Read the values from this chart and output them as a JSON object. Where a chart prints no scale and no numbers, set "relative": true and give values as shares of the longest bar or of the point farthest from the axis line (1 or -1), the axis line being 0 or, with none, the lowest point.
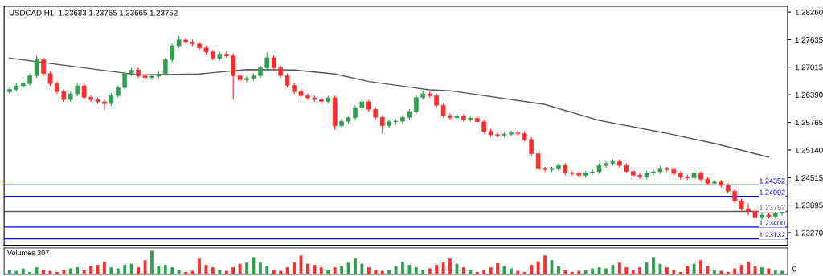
{
  "chart_data": [
    {
      "type": "candlestick",
      "title": "USDCAD,H1  1.23683 1.23765 1.23665 1.23752",
      "categories": [
        null,
        null,
        null,
        null,
        null,
        null,
        null,
        null,
        null,
        null,
        null,
        null,
        null,
        null,
        null,
        null,
        null,
        null,
        null,
        null,
        null,
        null,
        null,
        null,
        null,
        null,
        null,
        null,
        null,
        null,
        null,
        null,
        null,
        null,
        null,
        null,
        null,
        null,
        null,
        null,
        null,
        null,
        null,
        null,
        null,
        null,
        null,
        null,
        null,
        null,
        null,
        null,
        null,
        null,
        null,
        null,
        null,
        null,
        null,
        null,
        null,
        null,
        null,
        null,
        null,
        null,
        null,
        null,
        null,
        null,
        null,
        null,
        null,
        null,
        null,
        null,
        null,
        null,
        null,
        null,
        null,
        null,
        null,
        null,
        null,
        null,
        null,
        null,
        null,
        null,
        null,
        null,
        null,
        null,
        null,
        null,
        null,
        null,
        null,
        null,
        null,
        null,
        null,
        null,
        null,
        null,
        null,
        null,
        null,
        null,
        null,
        null,
        null,
        null,
        null
      ],
      "ohlc": [
        [
          1.2645,
          1.2656,
          1.264,
          1.2651
        ],
        [
          1.2651,
          1.2664,
          1.2646,
          1.2659
        ],
        [
          1.2659,
          1.2669,
          1.2654,
          1.2664
        ],
        [
          1.2664,
          1.2687,
          1.2659,
          1.2682
        ],
        [
          1.2682,
          1.2727,
          1.2677,
          1.2718
        ],
        [
          1.2718,
          1.2723,
          1.2682,
          1.2687
        ],
        [
          1.2687,
          1.2692,
          1.2659,
          1.2664
        ],
        [
          1.2664,
          1.2669,
          1.2641,
          1.2646
        ],
        [
          1.2646,
          1.2651,
          1.2623,
          1.2628
        ],
        [
          1.2628,
          1.2646,
          1.2623,
          1.2641
        ],
        [
          1.2641,
          1.2664,
          1.2636,
          1.2659
        ],
        [
          1.2659,
          1.2664,
          1.2628,
          1.2633
        ],
        [
          1.2633,
          1.2638,
          1.2623,
          1.2628
        ],
        [
          1.2628,
          1.2633,
          1.2618,
          1.2623
        ],
        [
          1.2623,
          1.2628,
          1.2605,
          1.2619
        ],
        [
          1.2619,
          1.2642,
          1.2614,
          1.2637
        ],
        [
          1.2637,
          1.266,
          1.2632,
          1.2655
        ],
        [
          1.2655,
          1.2692,
          1.265,
          1.2687
        ],
        [
          1.2687,
          1.27,
          1.2682,
          1.2695
        ],
        [
          1.2695,
          1.27,
          1.2677,
          1.2682
        ],
        [
          1.2682,
          1.2687,
          1.2673,
          1.2678
        ],
        [
          1.2678,
          1.2686,
          1.2673,
          1.2681
        ],
        [
          1.2681,
          1.2691,
          1.2676,
          1.2686
        ],
        [
          1.2686,
          1.2723,
          1.2681,
          1.2718
        ],
        [
          1.2718,
          1.2755,
          1.2713,
          1.275
        ],
        [
          1.275,
          1.2772,
          1.2745,
          1.2763
        ],
        [
          1.2763,
          1.2768,
          1.2754,
          1.2759
        ],
        [
          1.2759,
          1.2764,
          1.2749,
          1.2754
        ],
        [
          1.2754,
          1.2759,
          1.274,
          1.2745
        ],
        [
          1.2745,
          1.275,
          1.2731,
          1.2736
        ],
        [
          1.2736,
          1.2741,
          1.2717,
          1.2722
        ],
        [
          1.2722,
          1.2736,
          1.2717,
          1.2731
        ],
        [
          1.2731,
          1.2736,
          1.2722,
          1.2727
        ],
        [
          1.2727,
          1.2732,
          1.2628,
          1.2682
        ],
        [
          1.2682,
          1.2687,
          1.2668,
          1.2673
        ],
        [
          1.2673,
          1.2681,
          1.2668,
          1.2676
        ],
        [
          1.2676,
          1.2687,
          1.2671,
          1.2682
        ],
        [
          1.2682,
          1.2705,
          1.2677,
          1.27
        ],
        [
          1.27,
          1.2735,
          1.2695,
          1.2723
        ],
        [
          1.2723,
          1.2728,
          1.2695,
          1.27
        ],
        [
          1.27,
          1.2705,
          1.2677,
          1.2682
        ],
        [
          1.2682,
          1.2687,
          1.2655,
          1.266
        ],
        [
          1.266,
          1.2665,
          1.2641,
          1.2646
        ],
        [
          1.2646,
          1.2651,
          1.2632,
          1.2637
        ],
        [
          1.2637,
          1.2642,
          1.2627,
          1.2632
        ],
        [
          1.2632,
          1.2637,
          1.2623,
          1.2628
        ],
        [
          1.2628,
          1.2633,
          1.2619,
          1.2624
        ],
        [
          1.2624,
          1.2637,
          1.2619,
          1.2632
        ],
        [
          1.2632,
          1.2637,
          1.256,
          1.2569
        ],
        [
          1.2569,
          1.2584,
          1.2564,
          1.2579
        ],
        [
          1.2579,
          1.2592,
          1.2574,
          1.2587
        ],
        [
          1.2587,
          1.2615,
          1.2582,
          1.261
        ],
        [
          1.261,
          1.2628,
          1.2605,
          1.2623
        ],
        [
          1.2623,
          1.2628,
          1.2601,
          1.2606
        ],
        [
          1.2606,
          1.2611,
          1.2583,
          1.2588
        ],
        [
          1.2588,
          1.2593,
          1.2551,
          1.2569
        ],
        [
          1.2569,
          1.2583,
          1.2564,
          1.2578
        ],
        [
          1.2578,
          1.2584,
          1.2573,
          1.2579
        ],
        [
          1.2579,
          1.2593,
          1.2574,
          1.2588
        ],
        [
          1.2588,
          1.2606,
          1.2583,
          1.2601
        ],
        [
          1.2601,
          1.2638,
          1.2596,
          1.2633
        ],
        [
          1.2633,
          1.2648,
          1.2628,
          1.2641
        ],
        [
          1.2641,
          1.2646,
          1.2632,
          1.2637
        ],
        [
          1.2637,
          1.2642,
          1.261,
          1.2615
        ],
        [
          1.2615,
          1.262,
          1.2587,
          1.2592
        ],
        [
          1.2592,
          1.2597,
          1.2582,
          1.2587
        ],
        [
          1.2587,
          1.2595,
          1.2582,
          1.259
        ],
        [
          1.259,
          1.2595,
          1.2578,
          1.2583
        ],
        [
          1.2583,
          1.2591,
          1.2578,
          1.2586
        ],
        [
          1.2586,
          1.2591,
          1.2573,
          1.2578
        ],
        [
          1.2578,
          1.2583,
          1.2551,
          1.2556
        ],
        [
          1.2556,
          1.2561,
          1.2544,
          1.2549
        ],
        [
          1.2549,
          1.2554,
          1.2542,
          1.2547
        ],
        [
          1.2547,
          1.2555,
          1.2542,
          1.255
        ],
        [
          1.255,
          1.2558,
          1.2545,
          1.2553
        ],
        [
          1.2553,
          1.2558,
          1.2546,
          1.2551
        ],
        [
          1.2551,
          1.2556,
          1.2533,
          1.2538
        ],
        [
          1.2538,
          1.2543,
          1.2501,
          1.2506
        ],
        [
          1.2506,
          1.2511,
          1.2466,
          1.2471
        ],
        [
          1.2471,
          1.2476,
          1.2465,
          1.247
        ],
        [
          1.247,
          1.2476,
          1.2465,
          1.2471
        ],
        [
          1.2471,
          1.2484,
          1.2466,
          1.2479
        ],
        [
          1.2479,
          1.2484,
          1.2457,
          1.2462
        ],
        [
          1.2462,
          1.2467,
          1.2456,
          1.2461
        ],
        [
          1.2461,
          1.2466,
          1.2452,
          1.2457
        ],
        [
          1.2457,
          1.2467,
          1.2452,
          1.2462
        ],
        [
          1.2462,
          1.247,
          1.2457,
          1.2465
        ],
        [
          1.2465,
          1.2484,
          1.246,
          1.2479
        ],
        [
          1.2479,
          1.2489,
          1.2474,
          1.2484
        ],
        [
          1.2484,
          1.2493,
          1.2479,
          1.2488
        ],
        [
          1.2488,
          1.2493,
          1.2474,
          1.2479
        ],
        [
          1.2479,
          1.2484,
          1.2461,
          1.2466
        ],
        [
          1.2466,
          1.2471,
          1.2452,
          1.2457
        ],
        [
          1.2457,
          1.2462,
          1.2448,
          1.2453
        ],
        [
          1.2453,
          1.2467,
          1.2448,
          1.2462
        ],
        [
          1.2462,
          1.247,
          1.2457,
          1.2465
        ],
        [
          1.2465,
          1.2478,
          1.246,
          1.2471
        ],
        [
          1.2471,
          1.2476,
          1.2465,
          1.247
        ],
        [
          1.247,
          1.2475,
          1.2456,
          1.2461
        ],
        [
          1.2461,
          1.2466,
          1.2448,
          1.2453
        ],
        [
          1.2453,
          1.2458,
          1.2446,
          1.2451
        ],
        [
          1.2451,
          1.2471,
          1.2446,
          1.2462
        ],
        [
          1.2462,
          1.2467,
          1.2443,
          1.2448
        ],
        [
          1.2448,
          1.2453,
          1.2434,
          1.2439
        ],
        [
          1.2439,
          1.2447,
          1.2434,
          1.2442
        ],
        [
          1.2442,
          1.2447,
          1.2429,
          1.2434
        ],
        [
          1.2434,
          1.2439,
          1.2416,
          1.2421
        ],
        [
          1.2421,
          1.2426,
          1.2394,
          1.2399
        ],
        [
          1.2399,
          1.2404,
          1.2376,
          1.2381
        ],
        [
          1.2381,
          1.2393,
          1.2366,
          1.2376
        ],
        [
          1.2376,
          1.2381,
          1.2356,
          1.2361
        ],
        [
          1.2361,
          1.2372,
          1.2356,
          1.2367
        ],
        [
          1.2367,
          1.2372,
          1.2359,
          1.2364
        ],
        [
          1.2364,
          1.2376,
          1.2359,
          1.2371
        ],
        [
          1.2371,
          1.2377,
          1.2366,
          1.2375
        ]
      ],
      "colors": [
        "#2e9e4f",
        "#2e9e4f",
        "#2e9e4f",
        "#2e9e4f",
        "#2e9e4f",
        "#ff2a2a",
        "#ff2a2a",
        "#ff2a2a",
        "#ff2a2a",
        "#2e9e4f",
        "#2e9e4f",
        "#ff2a2a",
        "#ff2a2a",
        "#ff2a2a",
        "#ff2a2a",
        "#2e9e4f",
        "#2e9e4f",
        "#2e9e4f",
        "#2e9e4f",
        "#ff2a2a",
        "#ff2a2a",
        "#2e9e4f",
        "#2e9e4f",
        "#2e9e4f",
        "#2e9e4f",
        "#2e9e4f",
        "#ff2a2a",
        "#ff2a2a",
        "#ff2a2a",
        "#ff2a2a",
        "#ff2a2a",
        "#2e9e4f",
        "#ff2a2a",
        "#ff2a2a",
        "#ff2a2a",
        "#2e9e4f",
        "#2e9e4f",
        "#2e9e4f",
        "#2e9e4f",
        "#ff2a2a",
        "#ff2a2a",
        "#ff2a2a",
        "#ff2a2a",
        "#ff2a2a",
        "#ff2a2a",
        "#ff2a2a",
        "#ff2a2a",
        "#2e9e4f",
        "#ff2a2a",
        "#2e9e4f",
        "#2e9e4f",
        "#2e9e4f",
        "#2e9e4f",
        "#ff2a2a",
        "#ff2a2a",
        "#ff2a2a",
        "#2e9e4f",
        "#2e9e4f",
        "#2e9e4f",
        "#2e9e4f",
        "#2e9e4f",
        "#2e9e4f",
        "#ff2a2a",
        "#ff2a2a",
        "#ff2a2a",
        "#ff2a2a",
        "#2e9e4f",
        "#ff2a2a",
        "#2e9e4f",
        "#ff2a2a",
        "#ff2a2a",
        "#ff2a2a",
        "#ff2a2a",
        "#2e9e4f",
        "#2e9e4f",
        "#ff2a2a",
        "#ff2a2a",
        "#ff2a2a",
        "#ff2a2a",
        "#ff2a2a",
        "#2e9e4f",
        "#2e9e4f",
        "#ff2a2a",
        "#ff2a2a",
        "#ff2a2a",
        "#2e9e4f",
        "#2e9e4f",
        "#2e9e4f",
        "#2e9e4f",
        "#2e9e4f",
        "#ff2a2a",
        "#ff2a2a",
        "#ff2a2a",
        "#ff2a2a",
        "#2e9e4f",
        "#2e9e4f",
        "#2e9e4f",
        "#ff2a2a",
        "#ff2a2a",
        "#ff2a2a",
        "#ff2a2a",
        "#2e9e4f",
        "#ff2a2a",
        "#ff2a2a",
        "#2e9e4f",
        "#ff2a2a",
        "#ff2a2a",
        "#ff2a2a",
        "#ff2a2a",
        "#ff2a2a",
        "#ff2a2a",
        "#2e9e4f",
        "#ff2a2a",
        "#2e9e4f",
        "#2e9e4f"
      ],
      "series": [
        {
          "type": "line",
          "color": "#555555",
          "values": [
            1.2722,
            null,
            null,
            null,
            null,
            null,
            null,
            null,
            null,
            null,
            null,
            null,
            null,
            null,
            null,
            null,
            null,
            null,
            null,
            1.2684,
            null,
            null,
            null,
            null,
            null,
            null,
            null,
            null,
            1.2686,
            null,
            null,
            null,
            null,
            null,
            null,
            1.2696,
            null,
            null,
            null,
            null,
            null,
            null,
            1.2695,
            null,
            null,
            null,
            null,
            null,
            1.2686,
            null,
            null,
            null,
            null,
            1.2669,
            null,
            null,
            null,
            null,
            null,
            null,
            null,
            null,
            1.265,
            null,
            null,
            1.2648,
            null,
            null,
            null,
            null,
            null,
            null,
            null,
            null,
            null,
            null,
            null,
            null,
            null,
            1.2617,
            null,
            null,
            null,
            null,
            null,
            null,
            null,
            1.2581,
            null,
            null,
            null,
            null,
            null,
            null,
            null,
            null,
            null,
            1.2552,
            null,
            null,
            null,
            null,
            null,
            null,
            1.2529,
            null,
            null,
            null,
            null,
            null,
            null,
            null,
            1.2498,
            null,
            null
          ]
        }
      ],
      "ylim": [
        1.2299,
        1.2839
      ],
      "yticks": [
        {
          "value": 1.2826,
          "label": "1.28260"
        },
        {
          "value": 1.27635,
          "label": "1.27635"
        },
        {
          "value": 1.27015,
          "label": "1.27015"
        },
        {
          "value": 1.2639,
          "label": "1.26390"
        },
        {
          "value": 1.25765,
          "label": "1.25765"
        },
        {
          "value": 1.2514,
          "label": "1.25140"
        },
        {
          "value": 1.24515,
          "label": "1.24515"
        },
        {
          "value": 1.23895,
          "label": "1.23895"
        },
        {
          "value": 1.2327,
          "label": "1.23270"
        }
      ],
      "ref_lines": [
        {
          "axis": "y",
          "value": 1.24352,
          "label": "1.24352",
          "color": "#0000ff"
        },
        {
          "axis": "y",
          "value": 1.24092,
          "label": "1.24092",
          "color": "#0000ff"
        },
        {
          "axis": "y",
          "value": 1.23752,
          "label": "1.23752",
          "color": "#555555"
        },
        {
          "axis": "y",
          "value": 1.234,
          "label": "1.23400",
          "color": "#0000ff"
        },
        {
          "axis": "y",
          "value": 1.23132,
          "label": "1.23132",
          "color": "#0000ff"
        }
      ],
      "tick_labels": "y",
      "grid": false
    },
    {
      "type": "bar",
      "relative": true,
      "annotations": [
        "Volumes 307",
        "0"
      ],
      "categories": [
        null,
        null,
        null,
        null,
        null,
        null,
        null,
        null,
        null,
        null,
        null,
        null,
        null,
        null,
        null,
        null,
        null,
        null,
        null,
        null,
        null,
        null,
        null,
        null,
        null,
        null,
        null,
        null,
        null,
        null,
        null,
        null,
        null,
        null,
        null,
        null,
        null,
        null,
        null,
        null,
        null,
        null,
        null,
        null,
        null,
        null,
        null,
        null,
        null,
        null,
        null,
        null,
        null,
        null,
        null,
        null,
        null,
        null,
        null,
        null,
        null,
        null,
        null,
        null,
        null,
        null,
        null,
        null,
        null,
        null,
        null,
        null,
        null,
        null,
        null,
        null,
        null,
        null,
        null,
        null,
        null,
        null,
        null,
        null,
        null,
        null,
        null,
        null,
        null,
        null,
        null,
        null,
        null,
        null,
        null,
        null,
        null,
        null,
        null,
        null,
        null,
        null,
        null,
        null,
        null,
        null,
        null,
        null,
        null,
        null,
        null,
        null,
        null,
        null,
        null
      ],
      "values": [
        0.2,
        0.15,
        0.25,
        0.1,
        0.3,
        0.2,
        0.15,
        0.1,
        0.2,
        0.25,
        0.3,
        0.2,
        0.35,
        0.4,
        0.53,
        0.3,
        0.25,
        0.4,
        0.45,
        0.3,
        0.6,
        1.0,
        0.35,
        0.4,
        0.3,
        0.2,
        0.1,
        0.15,
        0.67,
        0.4,
        0.3,
        0.2,
        0.15,
        0.3,
        0.45,
        0.5,
        0.73,
        0.5,
        0.35,
        0.2,
        0.15,
        0.3,
        0.5,
        0.8,
        0.45,
        0.4,
        0.3,
        0.2,
        0.3,
        0.35,
        0.5,
        0.67,
        0.45,
        0.3,
        0.2,
        0.15,
        0.2,
        0.35,
        0.53,
        0.4,
        0.3,
        0.2,
        0.25,
        0.4,
        0.5,
        0.67,
        0.45,
        0.3,
        0.2,
        0.1,
        0.2,
        0.3,
        0.47,
        0.35,
        0.25,
        0.15,
        0.1,
        0.4,
        0.55,
        0.8,
        0.6,
        0.35,
        0.2,
        0.1,
        0.15,
        0.2,
        0.25,
        0.3,
        0.25,
        0.4,
        0.5,
        0.3,
        0.2,
        0.3,
        0.5,
        0.73,
        0.45,
        0.3,
        0.2,
        0.1,
        0.35,
        0.45,
        0.6,
        0.35,
        0.2,
        0.15,
        0.1,
        0.25,
        0.4,
        0.53,
        0.35,
        0.3,
        0.25,
        0.2,
        0.15
      ],
      "colors": [
        "#2e9e4f",
        "#2e9e4f",
        "#2e9e4f",
        "#2e9e4f",
        "#2e9e4f",
        "#ff2a2a",
        "#ff2a2a",
        "#ff2a2a",
        "#ff2a2a",
        "#2e9e4f",
        "#2e9e4f",
        "#ff2a2a",
        "#ff2a2a",
        "#ff2a2a",
        "#ff2a2a",
        "#2e9e4f",
        "#2e9e4f",
        "#2e9e4f",
        "#2e9e4f",
        "#ff2a2a",
        "#ff2a2a",
        "#2e9e4f",
        "#2e9e4f",
        "#2e9e4f",
        "#2e9e4f",
        "#2e9e4f",
        "#ff2a2a",
        "#ff2a2a",
        "#ff2a2a",
        "#ff2a2a",
        "#ff2a2a",
        "#2e9e4f",
        "#ff2a2a",
        "#ff2a2a",
        "#ff2a2a",
        "#2e9e4f",
        "#2e9e4f",
        "#2e9e4f",
        "#2e9e4f",
        "#ff2a2a",
        "#ff2a2a",
        "#ff2a2a",
        "#ff2a2a",
        "#ff2a2a",
        "#ff2a2a",
        "#ff2a2a",
        "#ff2a2a",
        "#2e9e4f",
        "#ff2a2a",
        "#2e9e4f",
        "#2e9e4f",
        "#2e9e4f",
        "#2e9e4f",
        "#ff2a2a",
        "#ff2a2a",
        "#ff2a2a",
        "#2e9e4f",
        "#2e9e4f",
        "#2e9e4f",
        "#2e9e4f",
        "#2e9e4f",
        "#2e9e4f",
        "#ff2a2a",
        "#ff2a2a",
        "#ff2a2a",
        "#ff2a2a",
        "#2e9e4f",
        "#ff2a2a",
        "#2e9e4f",
        "#ff2a2a",
        "#ff2a2a",
        "#ff2a2a",
        "#ff2a2a",
        "#2e9e4f",
        "#2e9e4f",
        "#ff2a2a",
        "#ff2a2a",
        "#ff2a2a",
        "#ff2a2a",
        "#ff2a2a",
        "#2e9e4f",
        "#2e9e4f",
        "#ff2a2a",
        "#ff2a2a",
        "#ff2a2a",
        "#2e9e4f",
        "#2e9e4f",
        "#2e9e4f",
        "#2e9e4f",
        "#2e9e4f",
        "#ff2a2a",
        "#ff2a2a",
        "#ff2a2a",
        "#ff2a2a",
        "#2e9e4f",
        "#2e9e4f",
        "#2e9e4f",
        "#ff2a2a",
        "#ff2a2a",
        "#ff2a2a",
        "#ff2a2a",
        "#2e9e4f",
        "#ff2a2a",
        "#ff2a2a",
        "#2e9e4f",
        "#ff2a2a",
        "#ff2a2a",
        "#ff2a2a",
        "#ff2a2a",
        "#ff2a2a",
        "#ff2a2a",
        "#2e9e4f",
        "#ff2a2a",
        "#2e9e4f",
        "#2e9e4f"
      ],
      "tick_labels": false,
      "grid": false
    }
  ]
}
